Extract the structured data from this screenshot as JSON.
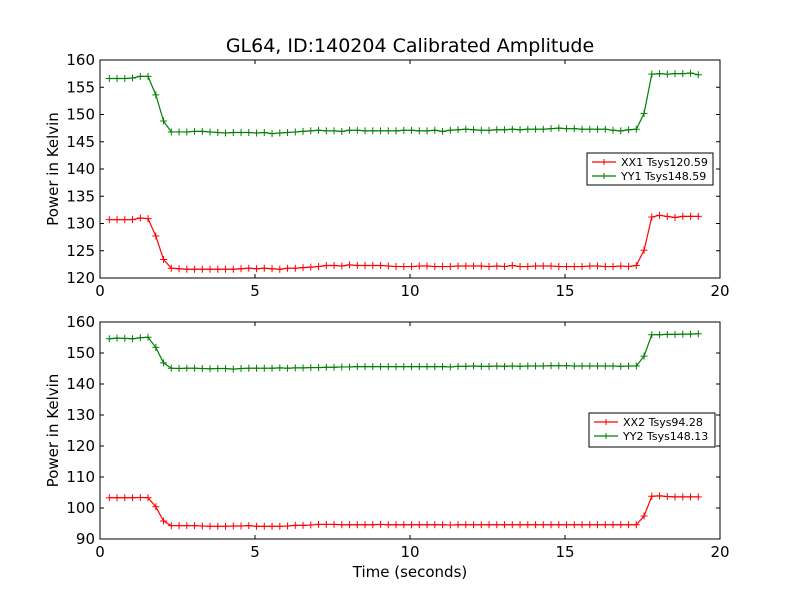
{
  "chart_data": [
    {
      "type": "line",
      "title": "GL64, ID:140204 Calibrated Amplitude",
      "xlabel": "",
      "ylabel": "Power in Kelvin",
      "xlim": [
        0,
        20
      ],
      "ylim": [
        120,
        160
      ],
      "xticks": [
        0,
        5,
        10,
        15,
        20
      ],
      "yticks": [
        120,
        125,
        130,
        135,
        140,
        145,
        150,
        155,
        160
      ],
      "legend_position": "center-right",
      "x": [
        0.3,
        0.55,
        0.8,
        1.05,
        1.3,
        1.55,
        1.8,
        2.05,
        2.3,
        2.55,
        2.8,
        3.05,
        3.3,
        3.55,
        3.8,
        4.05,
        4.3,
        4.55,
        4.8,
        5.05,
        5.3,
        5.55,
        5.8,
        6.05,
        6.3,
        6.55,
        6.8,
        7.05,
        7.3,
        7.55,
        7.8,
        8.05,
        8.3,
        8.55,
        8.8,
        9.05,
        9.3,
        9.55,
        9.8,
        10.05,
        10.3,
        10.55,
        10.8,
        11.05,
        11.3,
        11.55,
        11.8,
        12.05,
        12.3,
        12.55,
        12.8,
        13.05,
        13.3,
        13.55,
        13.8,
        14.05,
        14.3,
        14.55,
        14.8,
        15.05,
        15.3,
        15.55,
        15.8,
        16.05,
        16.3,
        16.55,
        16.8,
        17.05,
        17.3,
        17.55,
        17.8,
        18.05,
        18.3,
        18.55,
        18.8,
        19.05,
        19.3
      ],
      "series": [
        {
          "name": "XX1 Tsys120.59",
          "color": "#ff0000",
          "values": [
            130.7,
            130.7,
            130.7,
            130.7,
            131.0,
            130.9,
            127.7,
            123.4,
            121.8,
            121.7,
            121.6,
            121.6,
            121.6,
            121.6,
            121.6,
            121.6,
            121.6,
            121.7,
            121.8,
            121.7,
            121.8,
            121.7,
            121.6,
            121.8,
            121.8,
            121.9,
            122.0,
            122.1,
            122.3,
            122.3,
            122.2,
            122.4,
            122.3,
            122.3,
            122.3,
            122.3,
            122.2,
            122.1,
            122.1,
            122.1,
            122.2,
            122.2,
            122.1,
            122.1,
            122.1,
            122.2,
            122.2,
            122.2,
            122.2,
            122.1,
            122.2,
            122.1,
            122.3,
            122.1,
            122.1,
            122.2,
            122.2,
            122.2,
            122.1,
            122.1,
            122.1,
            122.1,
            122.2,
            122.2,
            122.1,
            122.1,
            122.2,
            122.1,
            122.3,
            125.1,
            131.2,
            131.5,
            131.3,
            131.1,
            131.3,
            131.3,
            131.3
          ]
        },
        {
          "name": "YY1 Tsys148.59",
          "color": "#008000",
          "values": [
            156.6,
            156.6,
            156.6,
            156.7,
            157.0,
            157.0,
            153.6,
            148.8,
            146.8,
            146.8,
            146.8,
            146.9,
            146.9,
            146.8,
            146.7,
            146.6,
            146.7,
            146.7,
            146.7,
            146.6,
            146.7,
            146.5,
            146.6,
            146.7,
            146.8,
            146.9,
            147.0,
            147.1,
            147.0,
            147.0,
            146.9,
            147.1,
            147.1,
            147.0,
            147.0,
            147.0,
            147.0,
            147.0,
            147.1,
            147.1,
            147.0,
            147.0,
            147.1,
            146.9,
            147.1,
            147.2,
            147.3,
            147.2,
            147.1,
            147.1,
            147.2,
            147.2,
            147.3,
            147.2,
            147.3,
            147.3,
            147.3,
            147.4,
            147.5,
            147.4,
            147.4,
            147.3,
            147.3,
            147.3,
            147.3,
            147.1,
            147.0,
            147.2,
            147.3,
            150.2,
            157.4,
            157.5,
            157.4,
            157.5,
            157.5,
            157.6,
            157.3
          ]
        }
      ]
    },
    {
      "type": "line",
      "title": "",
      "xlabel": "Time (seconds)",
      "ylabel": "Power in Kelvin",
      "xlim": [
        0,
        20
      ],
      "ylim": [
        90,
        160
      ],
      "xticks": [
        0,
        5,
        10,
        15,
        20
      ],
      "yticks": [
        90,
        100,
        110,
        120,
        130,
        140,
        150,
        160
      ],
      "legend_position": "center-right",
      "x": [
        0.3,
        0.55,
        0.8,
        1.05,
        1.3,
        1.55,
        1.8,
        2.05,
        2.3,
        2.55,
        2.8,
        3.05,
        3.3,
        3.55,
        3.8,
        4.05,
        4.3,
        4.55,
        4.8,
        5.05,
        5.3,
        5.55,
        5.8,
        6.05,
        6.3,
        6.55,
        6.8,
        7.05,
        7.3,
        7.55,
        7.8,
        8.05,
        8.3,
        8.55,
        8.8,
        9.05,
        9.3,
        9.55,
        9.8,
        10.05,
        10.3,
        10.55,
        10.8,
        11.05,
        11.3,
        11.55,
        11.8,
        12.05,
        12.3,
        12.55,
        12.8,
        13.05,
        13.3,
        13.55,
        13.8,
        14.05,
        14.3,
        14.55,
        14.8,
        15.05,
        15.3,
        15.55,
        15.8,
        16.05,
        16.3,
        16.55,
        16.8,
        17.05,
        17.3,
        17.55,
        17.8,
        18.05,
        18.3,
        18.55,
        18.8,
        19.05,
        19.3
      ],
      "series": [
        {
          "name": "XX2 Tsys94.28",
          "color": "#ff0000",
          "values": [
            103.3,
            103.3,
            103.3,
            103.3,
            103.4,
            103.3,
            100.4,
            95.8,
            94.3,
            94.3,
            94.3,
            94.3,
            94.2,
            94.1,
            94.1,
            94.1,
            94.2,
            94.2,
            94.3,
            94.1,
            94.1,
            94.1,
            94.1,
            94.2,
            94.4,
            94.4,
            94.5,
            94.7,
            94.7,
            94.7,
            94.6,
            94.6,
            94.6,
            94.6,
            94.6,
            94.7,
            94.6,
            94.6,
            94.6,
            94.6,
            94.6,
            94.6,
            94.6,
            94.6,
            94.5,
            94.6,
            94.6,
            94.6,
            94.6,
            94.6,
            94.6,
            94.6,
            94.6,
            94.6,
            94.6,
            94.6,
            94.6,
            94.6,
            94.6,
            94.6,
            94.6,
            94.6,
            94.6,
            94.6,
            94.6,
            94.6,
            94.6,
            94.6,
            94.6,
            97.4,
            103.8,
            103.9,
            103.7,
            103.6,
            103.6,
            103.6,
            103.6
          ]
        },
        {
          "name": "YY2 Tsys148.13",
          "color": "#008000",
          "values": [
            154.6,
            154.8,
            154.7,
            154.6,
            154.9,
            155.1,
            151.8,
            146.8,
            145.1,
            145.0,
            145.1,
            145.1,
            145.0,
            144.9,
            145.0,
            145.0,
            144.8,
            145.0,
            145.1,
            145.1,
            145.1,
            145.1,
            145.2,
            145.1,
            145.2,
            145.2,
            145.3,
            145.3,
            145.4,
            145.4,
            145.5,
            145.5,
            145.6,
            145.6,
            145.6,
            145.6,
            145.6,
            145.6,
            145.6,
            145.6,
            145.6,
            145.6,
            145.6,
            145.6,
            145.5,
            145.7,
            145.7,
            145.8,
            145.7,
            145.7,
            145.8,
            145.7,
            145.8,
            145.7,
            145.8,
            145.8,
            145.8,
            145.9,
            145.9,
            145.9,
            145.8,
            145.8,
            145.8,
            145.8,
            145.8,
            145.8,
            145.7,
            145.8,
            145.8,
            149.0,
            155.9,
            155.9,
            156.0,
            156.0,
            156.1,
            156.1,
            156.2
          ]
        }
      ]
    }
  ]
}
